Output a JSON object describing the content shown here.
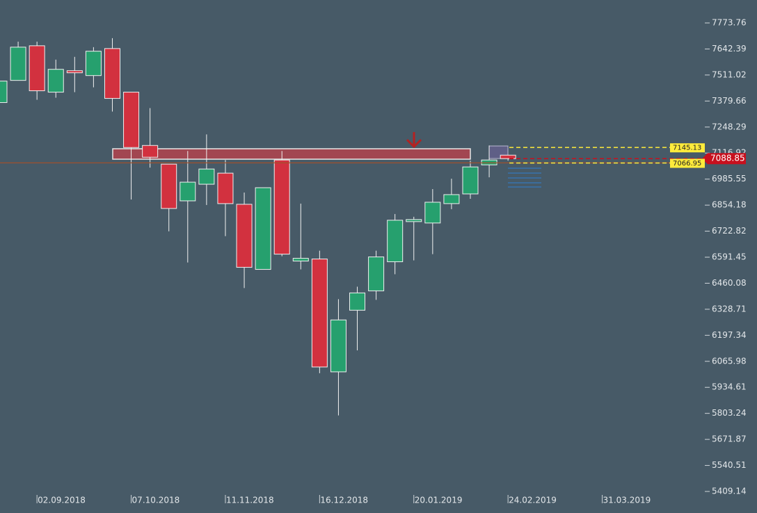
{
  "chart_data": {
    "type": "candlestick",
    "categories": [
      null,
      null,
      "02.09.2018",
      null,
      null,
      null,
      null,
      "07.10.2018",
      null,
      null,
      null,
      null,
      "11.11.2018",
      null,
      null,
      null,
      null,
      "16.12.2018",
      null,
      null,
      null,
      null,
      "20.01.2019",
      null,
      null,
      null,
      null,
      "24.02.2019",
      null,
      null,
      null,
      null,
      "31.03.2019",
      null,
      null,
      null,
      null,
      null
    ],
    "open": [
      7371.9,
      7483.8,
      7658.5,
      7424.4,
      7532.7,
      7508.2,
      7644.5,
      7424.4,
      7155.3,
      7061.0,
      6875.8,
      6959.7,
      7015.6,
      6858.4,
      6529.9,
      7082.0,
      6571.9,
      6582.3,
      6012.8,
      6323.8,
      6421.6,
      6568.4,
      6771.0,
      6764.0,
      6861.9,
      6910.8,
      7057.5,
      7106.4,
      null,
      null,
      null,
      null,
      null,
      null,
      null,
      null,
      null,
      null
    ],
    "high": [
      7480.2,
      7679.4,
      7679.4,
      7588.6,
      7602.6,
      7651.5,
      7696.9,
      7424.4,
      7344.0,
      7061.0,
      7127.4,
      7211.2,
      7082.0,
      6917.7,
      6942.2,
      7127.4,
      6861.9,
      6624.3,
      6379.7,
      6442.6,
      6624.3,
      6809.4,
      6795.5,
      6935.2,
      6987.6,
      7078.5,
      7155.3,
      7106.4,
      null,
      null,
      null,
      null,
      null,
      null,
      null,
      null,
      null,
      null
    ],
    "low": [
      7371.9,
      7483.8,
      7385.9,
      7396.4,
      7424.4,
      7448.8,
      7326.5,
      6882.8,
      7043.5,
      6722.1,
      6564.8,
      6854.9,
      6697.6,
      6435.6,
      6529.9,
      6596.3,
      6529.9,
      6005.8,
      5792.7,
      6121.2,
      6376.2,
      6505.5,
      6575.4,
      6606.8,
      6833.9,
      6886.3,
      6994.6,
      7078.5,
      null,
      null,
      null,
      null,
      null,
      null,
      null,
      null,
      null,
      null
    ],
    "close": [
      7480.2,
      7651.5,
      7431.4,
      7539.7,
      7522.2,
      7631.0,
      7392.9,
      7144.9,
      7096.0,
      6837.4,
      6970.1,
      7036.5,
      6861.9,
      6540.4,
      6942.2,
      6606.8,
      6585.8,
      6037.3,
      6274.8,
      6411.2,
      6592.8,
      6778.0,
      6781.5,
      6868.8,
      6907.3,
      7047.0,
      7082.0,
      7088.85,
      null,
      null,
      null,
      null,
      null,
      null,
      null,
      null,
      null,
      null
    ],
    "up_color": "#26a06e",
    "down_color": "#d2313f",
    "ylim": [
      5409.14,
      7773.76
    ],
    "yticks": [
      5409.14,
      5540.51,
      5671.87,
      5803.24,
      5934.61,
      6065.98,
      6197.34,
      6328.71,
      6460.08,
      6591.45,
      6722.82,
      6854.18,
      6985.55,
      7116.92,
      7248.29,
      7379.66,
      7511.02,
      7642.39,
      7773.76
    ],
    "price_labels": [
      {
        "value": 7145.13,
        "color": "#ffeb3b"
      },
      {
        "value": 7088.85,
        "color": "#c8101e"
      },
      {
        "value": 7066.95,
        "color": "#ffeb3b"
      }
    ]
  }
}
